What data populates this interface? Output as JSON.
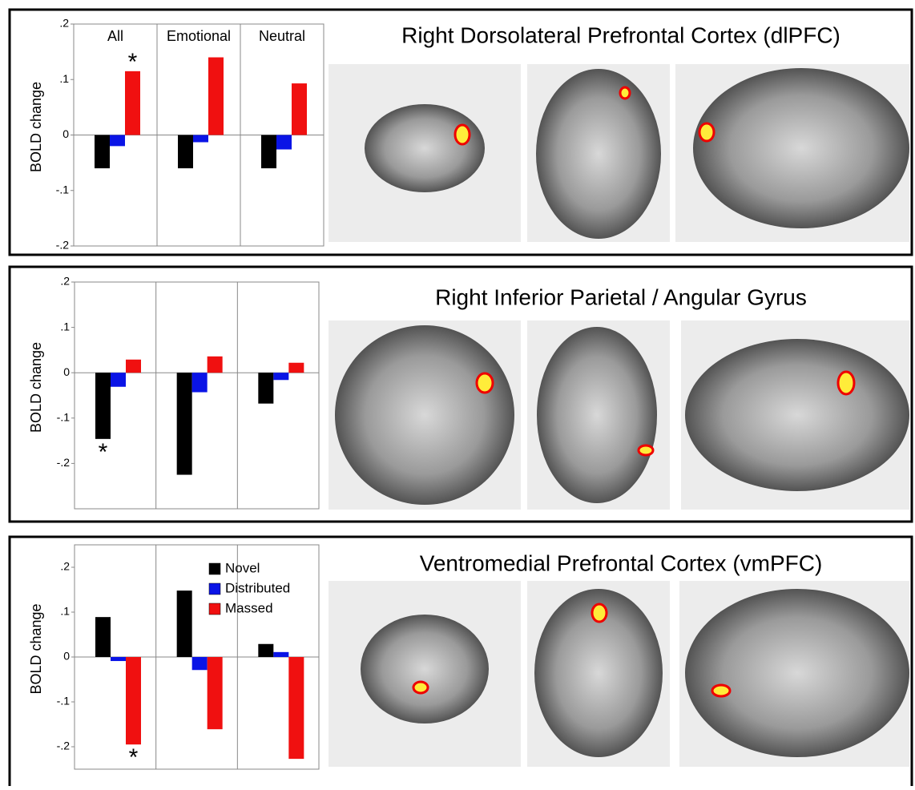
{
  "chart_data": [
    {
      "type": "bar",
      "title": "Right Dorsolateral Prefrontal Cortex (dlPFC)",
      "ylabel": "BOLD change",
      "categories": [
        "All",
        "Emotional",
        "Neutral"
      ],
      "series": [
        {
          "color": "#000000",
          "values": [
            -0.06,
            -0.06,
            -0.06
          ]
        },
        {
          "color": "#0a14e6",
          "values": [
            -0.02,
            -0.013,
            -0.026
          ]
        },
        {
          "color": "#f01010",
          "values": [
            0.115,
            0.14,
            0.093
          ]
        }
      ],
      "ylim": [
        -0.2,
        0.2
      ],
      "yticks": [
        {
          "value": 0.2,
          "label": ".2"
        },
        {
          "value": 0.1,
          "label": ".1"
        },
        0,
        {
          "value": -0.1,
          "label": "-.1"
        },
        {
          "value": -0.2,
          "label": "-.2"
        }
      ],
      "annotation": "*"
    },
    {
      "type": "bar",
      "title": "Right Inferior Parietal / Angular Gyrus",
      "ylabel": "BOLD change",
      "categories": [
        null,
        null,
        null
      ],
      "series": [
        {
          "color": "#000000",
          "values": [
            -0.146,
            -0.225,
            -0.068
          ]
        },
        {
          "color": "#0a14e6",
          "values": [
            -0.031,
            -0.043,
            -0.016
          ]
        },
        {
          "color": "#f01010",
          "values": [
            0.029,
            0.036,
            0.022
          ]
        }
      ],
      "ylim": [
        -0.3,
        0.2
      ],
      "yticks": [
        {
          "value": 0.2,
          "label": ".2"
        },
        {
          "value": 0.1,
          "label": ".1"
        },
        0,
        {
          "value": -0.1,
          "label": "-.1"
        },
        {
          "value": -0.2,
          "label": "-.2"
        }
      ],
      "annotation": "*"
    },
    {
      "type": "bar",
      "title": "Ventromedial Prefrontal Cortex (vmPFC)",
      "ylabel": "BOLD change",
      "categories": [
        null,
        null,
        null
      ],
      "series": [
        {
          "name": "Novel",
          "color": "#000000",
          "values": [
            0.089,
            0.148,
            0.029
          ]
        },
        {
          "name": "Distributed",
          "color": "#0a14e6",
          "values": [
            -0.009,
            -0.029,
            0.011
          ]
        },
        {
          "name": "Massed",
          "color": "#f01010",
          "values": [
            -0.195,
            -0.161,
            -0.227
          ]
        }
      ],
      "ylim": [
        -0.25,
        0.25
      ],
      "yticks": [
        {
          "value": 0.2,
          "label": ".2"
        },
        {
          "value": 0.1,
          "label": ".1"
        },
        0,
        {
          "value": -0.1,
          "label": "-.1"
        },
        {
          "value": -0.2,
          "label": "-.2"
        }
      ],
      "legend": "upper right",
      "annotation": "*"
    }
  ]
}
